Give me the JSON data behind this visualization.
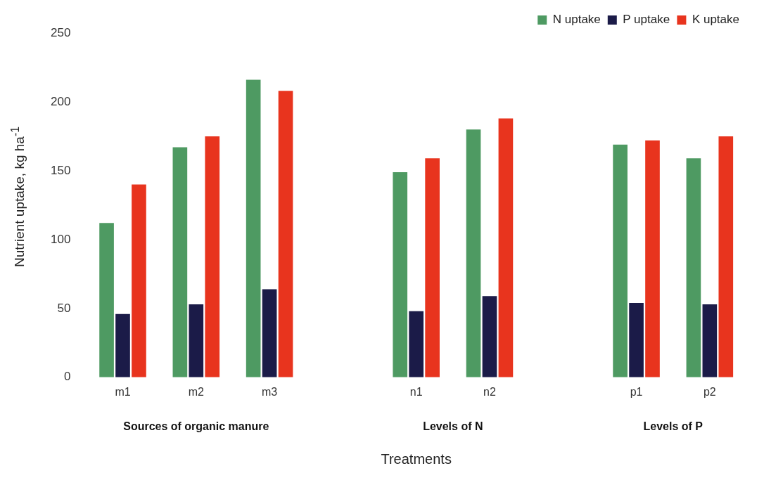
{
  "chart_data": {
    "type": "bar",
    "xlabel": "Treatments",
    "ylabel": "Nutrient uptake, kg ha$^{-1}$",
    "categories": [
      "m1",
      "m2",
      "m3",
      null,
      "n1",
      "n2",
      null,
      "p1",
      "p2"
    ],
    "series": [
      {
        "name": "N uptake",
        "color": "#4e9a62",
        "values": [
          112,
          167,
          216,
          null,
          149,
          180,
          null,
          169,
          159
        ]
      },
      {
        "name": "P uptake",
        "color": "#1b1b48",
        "values": [
          46,
          53,
          64,
          null,
          48,
          59,
          null,
          54,
          53
        ]
      },
      {
        "name": "K uptake",
        "color": "#e8341e",
        "values": [
          140,
          175,
          208,
          null,
          159,
          188,
          null,
          172,
          175
        ]
      }
    ],
    "ylim": [
      0,
      250
    ],
    "yticks": [
      0,
      50,
      100,
      150,
      200,
      250
    ],
    "grid": false,
    "legend": "top right",
    "annotations": [
      "Sources of organic manure",
      "Levels of N",
      "Levels of P"
    ]
  }
}
